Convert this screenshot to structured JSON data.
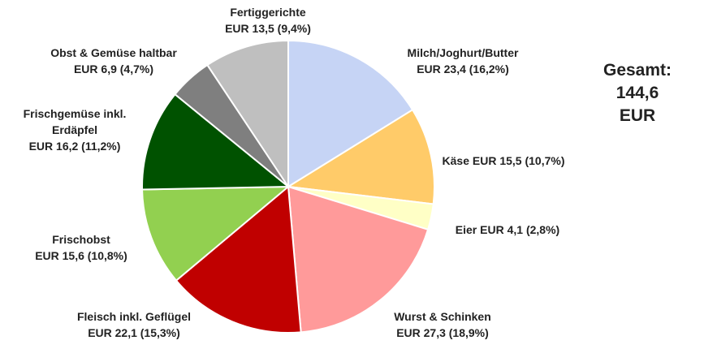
{
  "chart_data": {
    "type": "pie",
    "categories": [
      "Milch/Joghurt/Butter",
      "Käse",
      "Eier",
      "Wurst & Schinken",
      "Fleisch inkl. Geflügel",
      "Frischobst",
      "Frischgemüse inkl. Erdäpfel",
      "Obst & Gemüse haltbar",
      "Fertiggerichte"
    ],
    "values": [
      23.4,
      15.5,
      4.1,
      27.3,
      22.1,
      15.6,
      16.2,
      6.9,
      13.5
    ],
    "value_labels": [
      "EUR 23,4 (16,2%)",
      "EUR 15,5 (10,7%)",
      "EUR 4,1 (2,8%)",
      "EUR 27,3 (18,9%)",
      "EUR 22,1 (15,3%)",
      "EUR 15,6 (10,8%)",
      "EUR 16,2 (11,2%)",
      "EUR 6,9 (4,7%)",
      "EUR 13,5 (9,4%)"
    ],
    "colors": [
      "#c6d4f5",
      "#ffcb69",
      "#ffffc6",
      "#ff9a9a",
      "#c00000",
      "#92d050",
      "#005200",
      "#7f7f7f",
      "#bfbfbf"
    ],
    "annotation": [
      "Gesamt:",
      "144,6 EUR"
    ]
  }
}
